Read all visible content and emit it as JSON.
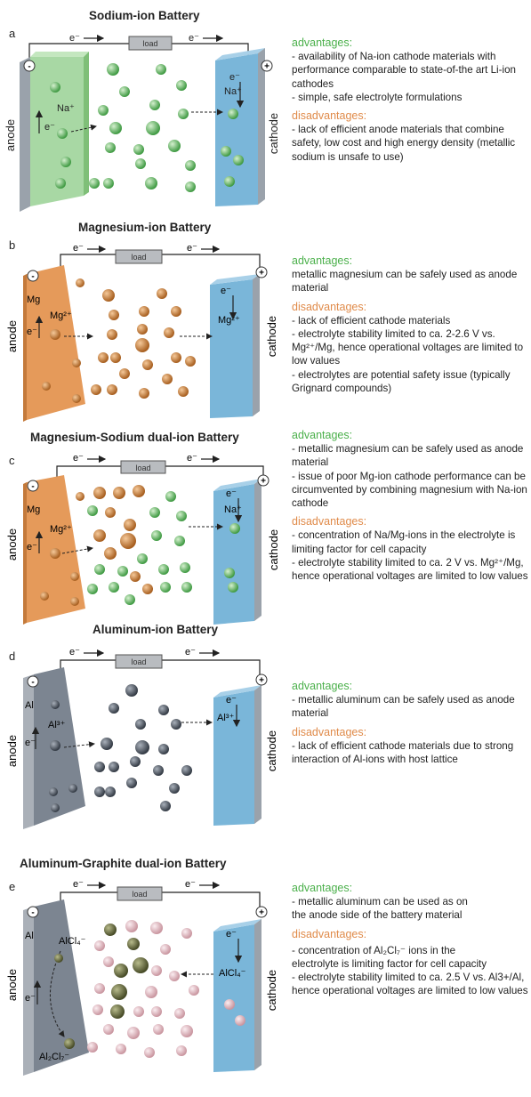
{
  "panels": [
    {
      "id": "a",
      "letter": "a",
      "title": "Sodium-ion Battery",
      "anode_label": "anode",
      "cathode_label": "cathode",
      "load_label": "load",
      "electron": "e⁻",
      "anode_ion": "Na⁺",
      "cathode_ion": "Na⁺",
      "anode_metal": "",
      "advantages_header": "advantages:",
      "advantages": [
        "- availability of Na-ion cathode materials with performance comparable to state-of-the art Li-ion cathodes",
        "- simple, safe electrolyte formulations"
      ],
      "disadvantages_header": "disadvantages:",
      "disadvantages": [
        "- lack of efficient anode materials that combine safety, low cost and high energy density (metallic sodium is unsafe to use)"
      ]
    },
    {
      "id": "b",
      "letter": "b",
      "title": "Magnesium-ion Battery",
      "anode_label": "anode",
      "cathode_label": "cathode",
      "load_label": "load",
      "electron": "e⁻",
      "anode_ion": "Mg²⁺",
      "cathode_ion": "Mg²⁺",
      "anode_metal": "Mg",
      "advantages_header": "advantages:",
      "advantages": [
        "metallic magnesium can be safely used as anode material"
      ],
      "disadvantages_header": "disadvantages:",
      "disadvantages": [
        "- lack of efficient cathode materials",
        "- electrolyte stability limited to ca. 2-2.6 V vs. Mg²⁺/Mg, hence operational voltages are limited to low values",
        "- electrolytes are potential safety issue (typically Grignard compounds)"
      ]
    },
    {
      "id": "c",
      "letter": "c",
      "title": "Magnesium-Sodium dual-ion Battery",
      "anode_label": "anode",
      "cathode_label": "cathode",
      "load_label": "load",
      "electron": "e⁻",
      "anode_ion": "Mg²⁺",
      "cathode_ion": "Na⁺",
      "anode_metal": "Mg",
      "advantages_header": "advantages:",
      "advantages": [
        "- metallic magnesium can be safely used as anode material",
        "- issue of poor Mg-ion cathode performance can be circumvented by combining magnesium with Na-ion cathode"
      ],
      "disadvantages_header": "disadvantages:",
      "disadvantages": [
        "- concentration of Na/Mg-ions in the electrolyte is limiting factor for cell capacity",
        "- electrolyte stability limited to ca. 2 V vs. Mg²⁺/Mg,  hence operational voltages are limited to low values"
      ]
    },
    {
      "id": "d",
      "letter": "d",
      "title": "Aluminum-ion Battery",
      "anode_label": "anode",
      "cathode_label": "cathode",
      "load_label": "load",
      "electron": "e⁻",
      "anode_ion": "Al³⁺",
      "cathode_ion": "Al³⁺",
      "anode_metal": "Al",
      "advantages_header": "advantages:",
      "advantages": [
        "- metallic aluminum can be safely used as anode material"
      ],
      "disadvantages_header": "disadvantages:",
      "disadvantages": [
        "- lack of efficient cathode materials due to strong interaction of Al-ions with host lattice"
      ]
    },
    {
      "id": "e",
      "letter": "e",
      "title": "Aluminum-Graphite dual-ion Battery",
      "anode_label": "anode",
      "cathode_label": "cathode",
      "load_label": "load",
      "electron": "e⁻",
      "anode_ion": "AlCl₄⁻",
      "cathode_ion": "AlCl₄⁻",
      "anode_ion2": "Al₂Cl₇⁻",
      "anode_metal": "Al",
      "advantages_header": "advantages:",
      "advantages": [
        "- metallic aluminum can be used as on the anode side of the battery material"
      ],
      "disadvantages_header": "disadvantages:",
      "disadvantages": [
        "- concentration of Al₂Cl₇⁻ ions in the electrolyte is limiting factor for cell capacity",
        "- electrolyte stability limited to ca. 2.5 V vs. Al3+/Al, hence operational voltages are limited to low values"
      ]
    }
  ],
  "colors": {
    "sodium_ion": "#5bb55b",
    "magnesium_ion": "#c97a2f",
    "aluminum_ion": "#4f5663",
    "al2cl7_ion": "#6b6f45",
    "alcl4_ion": "#e2b8c2",
    "anode_na": "#9fd49a",
    "anode_mg": "#e59a5a",
    "anode_al": "#7c8591",
    "cathode": "#7ab6d9",
    "advantages": "#4bb04b",
    "disadvantages": "#e08b4a"
  }
}
